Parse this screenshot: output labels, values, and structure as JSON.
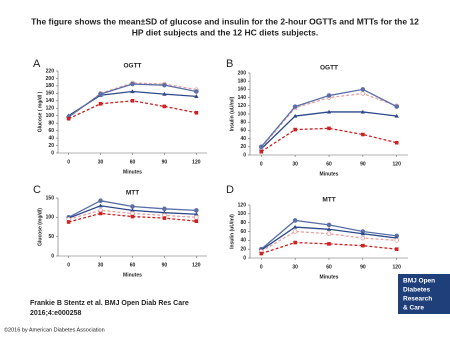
{
  "caption": [
    "The figure shows the mean±SD of glucose and insulin for the 2-hour OGTTs and MTTs for the 12",
    "HP diet subjects and the 12 HC diets subjects."
  ],
  "citation": [
    "Frankie B Stentz et al. BMJ Open Diab Res Care",
    "2016;4:e000258"
  ],
  "logo": [
    "BMJ Open",
    "Diabetes",
    "Research",
    "& Care"
  ],
  "copyright": "©2016 by American Diabetes Association",
  "chart_data": [
    {
      "type": "line",
      "panel": "A",
      "title": "OGTT",
      "x_label": "Minutes",
      "y_label": "Glucose ( mg/dl )",
      "x": [
        0,
        30,
        60,
        90,
        120
      ],
      "xlim": [
        -10,
        130
      ],
      "xticks": [
        0,
        30,
        60,
        90,
        120
      ],
      "ylim": [
        0,
        220
      ],
      "yticks": [
        0,
        20,
        40,
        60,
        80,
        100,
        120,
        140,
        160,
        180,
        200,
        220
      ],
      "series": [
        {
          "color": "#2e4a8c",
          "marker": "triangle",
          "dash": false,
          "values": [
            100,
            155,
            165,
            158,
            152
          ]
        },
        {
          "color": "#e8a0a0",
          "marker": "circle",
          "dash": true,
          "values": [
            95,
            160,
            188,
            185,
            170
          ]
        },
        {
          "color": "#5a6fa8",
          "marker": "circle",
          "dash": false,
          "values": [
            97,
            158,
            185,
            182,
            165
          ]
        },
        {
          "color": "#cc2222",
          "marker": "square",
          "dash": true,
          "values": [
            92,
            132,
            140,
            125,
            108
          ]
        }
      ]
    },
    {
      "type": "line",
      "panel": "B",
      "title": "OGTT",
      "x_label": "Minutes",
      "y_label": "Insulin (uU/ml)",
      "x": [
        0,
        30,
        60,
        90,
        120
      ],
      "xlim": [
        -10,
        130
      ],
      "xticks": [
        0,
        30,
        60,
        90,
        120
      ],
      "ylim": [
        0,
        200
      ],
      "yticks": [
        0,
        20,
        40,
        60,
        80,
        100,
        120,
        140,
        160,
        180,
        200
      ],
      "series": [
        {
          "color": "#2e4a8c",
          "marker": "triangle",
          "dash": false,
          "values": [
            15,
            95,
            105,
            105,
            95
          ]
        },
        {
          "color": "#e8a0a0",
          "marker": "circle",
          "dash": true,
          "values": [
            18,
            115,
            140,
            150,
            120
          ]
        },
        {
          "color": "#5a6fa8",
          "marker": "circle",
          "dash": false,
          "values": [
            20,
            118,
            145,
            160,
            118
          ]
        },
        {
          "color": "#cc2222",
          "marker": "square",
          "dash": true,
          "values": [
            8,
            62,
            65,
            50,
            30
          ]
        }
      ]
    },
    {
      "type": "line",
      "panel": "C",
      "title": "MTT",
      "x_label": "Minutes",
      "y_label": "Glucose (mg/dl)",
      "x": [
        0,
        30,
        60,
        90,
        120
      ],
      "xlim": [
        -10,
        130
      ],
      "xticks": [
        0,
        30,
        60,
        90,
        120
      ],
      "ylim": [
        0,
        150
      ],
      "yticks": [
        0,
        50,
        100,
        150
      ],
      "series": [
        {
          "color": "#5a6fa8",
          "marker": "circle",
          "dash": false,
          "values": [
            100,
            143,
            128,
            122,
            118
          ]
        },
        {
          "color": "#2e4a8c",
          "marker": "triangle",
          "dash": false,
          "values": [
            98,
            130,
            118,
            112,
            108
          ]
        },
        {
          "color": "#e8a0a0",
          "marker": "circle",
          "dash": true,
          "values": [
            95,
            118,
            110,
            105,
            100
          ]
        },
        {
          "color": "#cc2222",
          "marker": "square",
          "dash": true,
          "values": [
            88,
            110,
            102,
            98,
            90
          ]
        }
      ]
    },
    {
      "type": "line",
      "panel": "D",
      "title": "MTT",
      "x_label": "Minutes",
      "y_label": "Insulin (uU/ml)",
      "x": [
        0,
        30,
        60,
        90,
        120
      ],
      "xlim": [
        -10,
        130
      ],
      "xticks": [
        0,
        30,
        60,
        90,
        120
      ],
      "ylim": [
        0,
        120
      ],
      "yticks": [
        0,
        20,
        40,
        60,
        80,
        100,
        120
      ],
      "series": [
        {
          "color": "#5a6fa8",
          "marker": "circle",
          "dash": false,
          "values": [
            20,
            85,
            75,
            60,
            50
          ]
        },
        {
          "color": "#2e4a8c",
          "marker": "triangle",
          "dash": false,
          "values": [
            18,
            70,
            65,
            55,
            45
          ]
        },
        {
          "color": "#e8a0a0",
          "marker": "circle",
          "dash": true,
          "values": [
            15,
            60,
            55,
            45,
            40
          ]
        },
        {
          "color": "#cc2222",
          "marker": "square",
          "dash": true,
          "values": [
            10,
            35,
            32,
            28,
            20
          ]
        }
      ]
    }
  ]
}
